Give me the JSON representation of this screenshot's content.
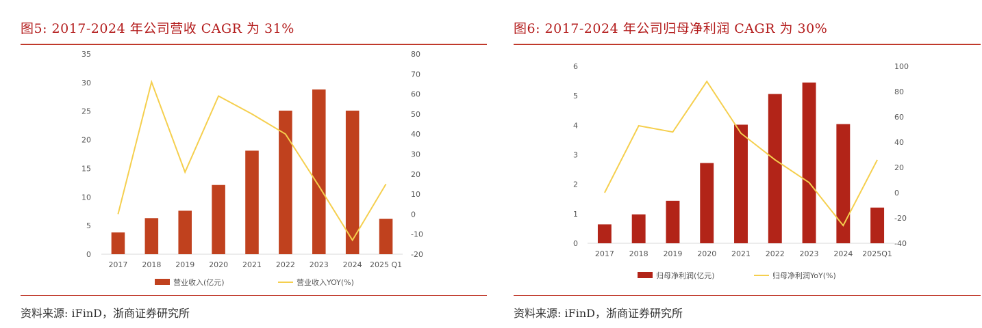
{
  "chart_data": [
    {
      "type": "bar",
      "title": "图5:  2017-2024 年公司营收 CAGR 为 31%",
      "categories": [
        "2017",
        "2018",
        "2019",
        "2020",
        "2021",
        "2022",
        "2023",
        "2024",
        "2025 Q1"
      ],
      "series": [
        {
          "name": "营业收入(亿元)",
          "type": "bar",
          "axis": "left",
          "color": "#c0411e",
          "values": [
            3.8,
            6.3,
            7.6,
            12.1,
            18.1,
            25.1,
            28.8,
            25.1,
            6.2
          ]
        },
        {
          "name": "营业收入YOY(%)",
          "type": "line",
          "axis": "right",
          "color": "#f5cf4e",
          "values": [
            0,
            66,
            21,
            59,
            50,
            40,
            14,
            -13,
            15
          ]
        }
      ],
      "left_axis": {
        "min": 0,
        "max": 35,
        "ticks": [
          0,
          5,
          10,
          15,
          20,
          25,
          30,
          35
        ]
      },
      "right_axis": {
        "min": -20,
        "max": 80,
        "ticks": [
          -20,
          -10,
          0,
          10,
          20,
          30,
          40,
          50,
          60,
          70,
          80
        ]
      },
      "legend": "bottom",
      "source": "资料来源:  iFinD，浙商证券研究所"
    },
    {
      "type": "bar",
      "title": "图6:  2017-2024 年公司归母净利润 CAGR 为 30%",
      "categories": [
        "2017",
        "2018",
        "2019",
        "2020",
        "2021",
        "2022",
        "2023",
        "2024",
        "2025Q1"
      ],
      "series": [
        {
          "name": "归母净利润(亿元)",
          "type": "bar",
          "axis": "left",
          "color": "#b22418",
          "values": [
            0.64,
            0.98,
            1.44,
            2.72,
            4.02,
            5.06,
            5.45,
            4.04,
            1.21
          ]
        },
        {
          "name": "归母净利润YoY(%)",
          "type": "line",
          "axis": "right",
          "color": "#f5cf4e",
          "values": [
            0,
            53,
            48,
            88,
            47,
            26,
            8,
            -26,
            26
          ]
        }
      ],
      "left_axis": {
        "min": 0,
        "max": 6,
        "ticks": [
          0,
          1,
          2,
          3,
          4,
          5,
          6
        ]
      },
      "right_axis": {
        "min": -40,
        "max": 100,
        "ticks": [
          -40,
          -20,
          0,
          20,
          40,
          60,
          80,
          100
        ]
      },
      "legend": "bottom",
      "source": "资料来源:  iFinD，浙商证券研究所"
    }
  ]
}
